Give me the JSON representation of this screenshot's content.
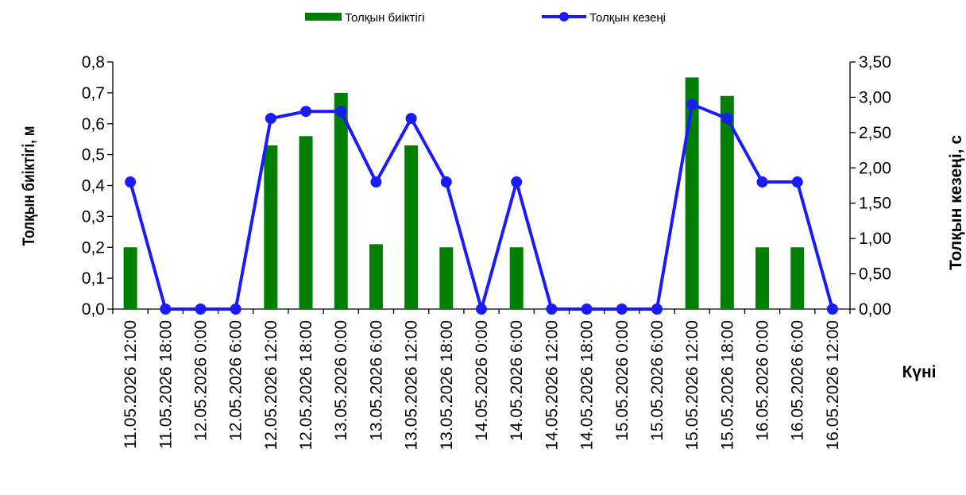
{
  "chart_data": {
    "type": "bar",
    "categories": [
      "11.05.2026 12:00",
      "11.05.2026 18:00",
      "12.05.2026 0:00",
      "12.05.2026 6:00",
      "12.05.2026 12:00",
      "12.05.2026 18:00",
      "13.05.2026 0:00",
      "13.05.2026 6:00",
      "13.05.2026 12:00",
      "13.05.2026 18:00",
      "14.05.2026 0:00",
      "14.05.2026 6:00",
      "14.05.2026 12:00",
      "14.05.2026 18:00",
      "15.05.2026 0:00",
      "15.05.2026 6:00",
      "15.05.2026 12:00",
      "15.05.2026 18:00",
      "16.05.2026 0:00",
      "16.05.2026 6:00",
      "16.05.2026 12:00"
    ],
    "series": [
      {
        "name": "Толқын биіктігі",
        "type": "bar",
        "axis": "left",
        "color": "#008000",
        "values": [
          0.2,
          0,
          0,
          0,
          0.53,
          0.56,
          0.7,
          0.21,
          0.53,
          0.2,
          0,
          0.2,
          0,
          0,
          0,
          0,
          0.75,
          0.69,
          0.2,
          0.2,
          0
        ]
      },
      {
        "name": "Толқын кезеңі",
        "type": "line",
        "axis": "right",
        "color": "#1a1aff",
        "values": [
          1.8,
          0,
          0,
          0,
          2.7,
          2.8,
          2.8,
          1.8,
          2.7,
          1.8,
          0,
          1.8,
          0,
          0,
          0,
          0,
          2.9,
          2.7,
          1.8,
          1.8,
          0
        ]
      }
    ],
    "y_left": {
      "label": "Толқын биіктігі, м",
      "ylim": [
        0,
        0.8
      ],
      "ticks": [
        "0,0",
        "0,1",
        "0,2",
        "0,3",
        "0,4",
        "0,5",
        "0,6",
        "0,7",
        "0,8"
      ]
    },
    "y_right": {
      "label": "Толқын кезеңі, с",
      "ylim": [
        0,
        3.5
      ],
      "ticks": [
        "0,00",
        "0,50",
        "1,00",
        "1,50",
        "2,00",
        "2,50",
        "3,00",
        "3,50"
      ]
    },
    "xlabel": "Күні",
    "legend_position": "top-center",
    "grid": false
  }
}
